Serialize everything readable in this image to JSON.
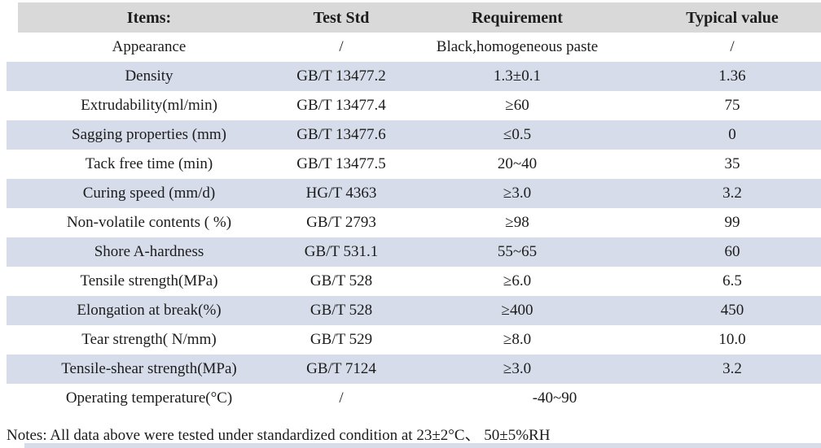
{
  "table": {
    "headers": [
      "Items:",
      "Test Std",
      "Requirement",
      "Typical value"
    ],
    "rows": [
      [
        "Appearance",
        "/",
        "Black,homogeneous paste",
        "/"
      ],
      [
        "Density",
        "GB/T 13477.2",
        "1.3±0.1",
        "1.36"
      ],
      [
        "Extrudability(ml/min)",
        "GB/T 13477.4",
        "≥60",
        "75"
      ],
      [
        "Sagging properties (mm)",
        "GB/T 13477.6",
        "≤0.5",
        "0"
      ],
      [
        "Tack free time (min)",
        "GB/T 13477.5",
        "20~40",
        "35"
      ],
      [
        "Curing speed (mm/d)",
        "HG/T 4363",
        "≥3.0",
        "3.2"
      ],
      [
        "Non-volatile contents ( %)",
        "GB/T 2793",
        "≥98",
        "99"
      ],
      [
        "Shore A-hardness",
        "GB/T 531.1",
        "55~65",
        "60"
      ],
      [
        "Tensile strength(MPa)",
        "GB/T 528",
        "≥6.0",
        "6.5"
      ],
      [
        "Elongation at break(%)",
        "GB/T 528",
        "≥400",
        "450"
      ],
      [
        "Tear strength( N/mm)",
        "GB/T 529",
        "≥8.0",
        "10.0"
      ],
      [
        "Tensile-shear strength(MPa)",
        "GB/T 7124",
        "≥3.0",
        "3.2"
      ],
      [
        "Operating temperature(°C)",
        "/",
        "-40~90"
      ]
    ]
  },
  "notes": "Notes: All data above were tested under standardized condition at 23±2°C、 50±5%RH",
  "colors": {
    "header_bg": "#d9d9d9",
    "stripe_bg": "#d6dce9"
  }
}
